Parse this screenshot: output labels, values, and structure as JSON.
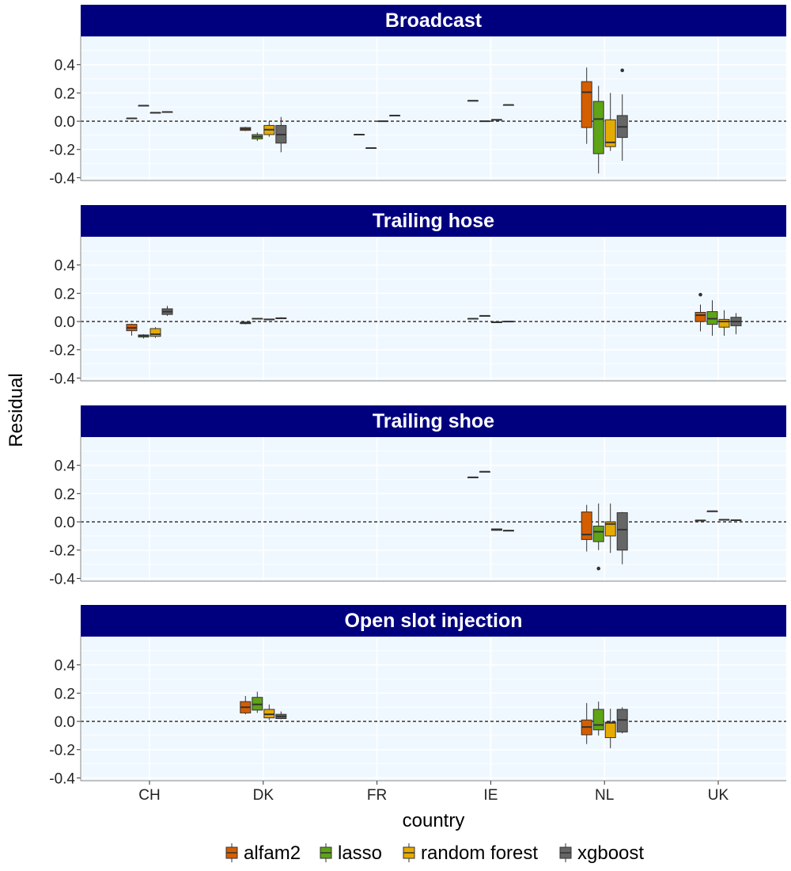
{
  "chart_data": {
    "type": "boxplot",
    "xlabel": "country",
    "ylabel": "Residual",
    "categories": [
      "CH",
      "DK",
      "FR",
      "IE",
      "NL",
      "UK"
    ],
    "ylim": [
      -0.42,
      0.6
    ],
    "yticks": [
      -0.4,
      -0.2,
      0.0,
      0.2,
      0.4
    ],
    "ytick_labels": [
      "-0.4",
      "-0.2",
      "0.0",
      "0.2",
      "0.4"
    ],
    "reference_line": 0,
    "grid": true,
    "legend_position": "bottom",
    "series": [
      {
        "name": "alfam2",
        "color": "#D55E00"
      },
      {
        "name": "lasso",
        "color": "#5FA317"
      },
      {
        "name": "random forest",
        "color": "#E6AB02"
      },
      {
        "name": "xgboost",
        "color": "#666666"
      }
    ],
    "panels": [
      {
        "title": "Broadcast",
        "boxes": [
          {
            "category": "CH",
            "series": "alfam2",
            "min": 0.02,
            "q1": 0.02,
            "median": 0.02,
            "q3": 0.02,
            "max": 0.02,
            "outliers": []
          },
          {
            "category": "CH",
            "series": "lasso",
            "min": 0.11,
            "q1": 0.11,
            "median": 0.11,
            "q3": 0.11,
            "max": 0.11,
            "outliers": []
          },
          {
            "category": "CH",
            "series": "random forest",
            "min": 0.06,
            "q1": 0.06,
            "median": 0.06,
            "q3": 0.06,
            "max": 0.06,
            "outliers": []
          },
          {
            "category": "CH",
            "series": "xgboost",
            "min": 0.065,
            "q1": 0.065,
            "median": 0.065,
            "q3": 0.065,
            "max": 0.065,
            "outliers": []
          },
          {
            "category": "DK",
            "series": "alfam2",
            "min": -0.07,
            "q1": -0.065,
            "median": -0.055,
            "q3": -0.045,
            "max": -0.04,
            "outliers": []
          },
          {
            "category": "DK",
            "series": "lasso",
            "min": -0.14,
            "q1": -0.125,
            "median": -0.11,
            "q3": -0.095,
            "max": -0.08,
            "outliers": []
          },
          {
            "category": "DK",
            "series": "random forest",
            "min": -0.11,
            "q1": -0.095,
            "median": -0.06,
            "q3": -0.03,
            "max": 0.0,
            "outliers": []
          },
          {
            "category": "DK",
            "series": "xgboost",
            "min": -0.22,
            "q1": -0.155,
            "median": -0.095,
            "q3": -0.03,
            "max": 0.03,
            "outliers": []
          },
          {
            "category": "FR",
            "series": "alfam2",
            "min": -0.095,
            "q1": -0.095,
            "median": -0.095,
            "q3": -0.095,
            "max": -0.095,
            "outliers": []
          },
          {
            "category": "FR",
            "series": "lasso",
            "min": -0.19,
            "q1": -0.19,
            "median": -0.19,
            "q3": -0.19,
            "max": -0.19,
            "outliers": []
          },
          {
            "category": "FR",
            "series": "random forest",
            "min": 0.0,
            "q1": 0.0,
            "median": 0.0,
            "q3": 0.0,
            "max": 0.0,
            "outliers": []
          },
          {
            "category": "FR",
            "series": "xgboost",
            "min": 0.04,
            "q1": 0.04,
            "median": 0.04,
            "q3": 0.04,
            "max": 0.04,
            "outliers": []
          },
          {
            "category": "IE",
            "series": "alfam2",
            "min": 0.145,
            "q1": 0.145,
            "median": 0.145,
            "q3": 0.145,
            "max": 0.145,
            "outliers": []
          },
          {
            "category": "IE",
            "series": "lasso",
            "min": 0.0,
            "q1": 0.0,
            "median": 0.0,
            "q3": 0.0,
            "max": 0.0,
            "outliers": []
          },
          {
            "category": "IE",
            "series": "random forest",
            "min": 0.01,
            "q1": 0.01,
            "median": 0.01,
            "q3": 0.01,
            "max": 0.01,
            "outliers": []
          },
          {
            "category": "IE",
            "series": "xgboost",
            "min": 0.115,
            "q1": 0.115,
            "median": 0.115,
            "q3": 0.115,
            "max": 0.115,
            "outliers": []
          },
          {
            "category": "NL",
            "series": "alfam2",
            "min": -0.16,
            "q1": -0.045,
            "median": 0.205,
            "q3": 0.28,
            "max": 0.38,
            "outliers": []
          },
          {
            "category": "NL",
            "series": "lasso",
            "min": -0.37,
            "q1": -0.23,
            "median": 0.015,
            "q3": 0.14,
            "max": 0.25,
            "outliers": []
          },
          {
            "category": "NL",
            "series": "random forest",
            "min": -0.21,
            "q1": -0.18,
            "median": -0.15,
            "q3": 0.01,
            "max": 0.2,
            "outliers": []
          },
          {
            "category": "NL",
            "series": "xgboost",
            "min": -0.28,
            "q1": -0.115,
            "median": -0.04,
            "q3": 0.04,
            "max": 0.19,
            "outliers": [
              0.36
            ]
          }
        ]
      },
      {
        "title": "Trailing hose",
        "boxes": [
          {
            "category": "CH",
            "series": "alfam2",
            "min": -0.1,
            "q1": -0.065,
            "median": -0.045,
            "q3": -0.02,
            "max": -0.015,
            "outliers": []
          },
          {
            "category": "CH",
            "series": "lasso",
            "min": -0.12,
            "q1": -0.11,
            "median": -0.1,
            "q3": -0.095,
            "max": -0.09,
            "outliers": []
          },
          {
            "category": "CH",
            "series": "random forest",
            "min": -0.115,
            "q1": -0.105,
            "median": -0.09,
            "q3": -0.05,
            "max": -0.04,
            "outliers": []
          },
          {
            "category": "CH",
            "series": "xgboost",
            "min": 0.04,
            "q1": 0.05,
            "median": 0.07,
            "q3": 0.09,
            "max": 0.11,
            "outliers": []
          },
          {
            "category": "DK",
            "series": "alfam2",
            "min": -0.02,
            "q1": -0.015,
            "median": -0.01,
            "q3": -0.005,
            "max": 0.0,
            "outliers": []
          },
          {
            "category": "DK",
            "series": "lasso",
            "min": 0.015,
            "q1": 0.018,
            "median": 0.02,
            "q3": 0.022,
            "max": 0.025,
            "outliers": []
          },
          {
            "category": "DK",
            "series": "random forest",
            "min": 0.01,
            "q1": 0.013,
            "median": 0.015,
            "q3": 0.017,
            "max": 0.02,
            "outliers": []
          },
          {
            "category": "DK",
            "series": "xgboost",
            "min": 0.018,
            "q1": 0.02,
            "median": 0.023,
            "q3": 0.026,
            "max": 0.03,
            "outliers": []
          },
          {
            "category": "IE",
            "series": "alfam2",
            "min": 0.02,
            "q1": 0.02,
            "median": 0.02,
            "q3": 0.02,
            "max": 0.02,
            "outliers": []
          },
          {
            "category": "IE",
            "series": "lasso",
            "min": 0.04,
            "q1": 0.04,
            "median": 0.04,
            "q3": 0.04,
            "max": 0.04,
            "outliers": []
          },
          {
            "category": "IE",
            "series": "random forest",
            "min": -0.005,
            "q1": -0.005,
            "median": -0.005,
            "q3": -0.005,
            "max": -0.005,
            "outliers": []
          },
          {
            "category": "IE",
            "series": "xgboost",
            "min": 0.0,
            "q1": 0.0,
            "median": 0.0,
            "q3": 0.0,
            "max": 0.0,
            "outliers": []
          },
          {
            "category": "UK",
            "series": "alfam2",
            "min": -0.07,
            "q1": 0.0,
            "median": 0.045,
            "q3": 0.065,
            "max": 0.12,
            "outliers": [
              0.19
            ]
          },
          {
            "category": "UK",
            "series": "lasso",
            "min": -0.1,
            "q1": -0.02,
            "median": 0.02,
            "q3": 0.07,
            "max": 0.15,
            "outliers": []
          },
          {
            "category": "UK",
            "series": "random forest",
            "min": -0.1,
            "q1": -0.04,
            "median": 0.0,
            "q3": 0.015,
            "max": 0.08,
            "outliers": []
          },
          {
            "category": "UK",
            "series": "xgboost",
            "min": -0.09,
            "q1": -0.03,
            "median": 0.0,
            "q3": 0.03,
            "max": 0.06,
            "outliers": []
          }
        ]
      },
      {
        "title": "Trailing shoe",
        "boxes": [
          {
            "category": "IE",
            "series": "alfam2",
            "min": 0.315,
            "q1": 0.315,
            "median": 0.315,
            "q3": 0.315,
            "max": 0.315,
            "outliers": []
          },
          {
            "category": "IE",
            "series": "lasso",
            "min": 0.355,
            "q1": 0.355,
            "median": 0.355,
            "q3": 0.355,
            "max": 0.355,
            "outliers": []
          },
          {
            "category": "IE",
            "series": "random forest",
            "min": -0.06,
            "q1": -0.06,
            "median": -0.055,
            "q3": -0.05,
            "max": -0.05,
            "outliers": []
          },
          {
            "category": "IE",
            "series": "xgboost",
            "min": -0.065,
            "q1": -0.065,
            "median": -0.062,
            "q3": -0.06,
            "max": -0.06,
            "outliers": []
          },
          {
            "category": "NL",
            "series": "alfam2",
            "min": -0.21,
            "q1": -0.125,
            "median": -0.09,
            "q3": 0.07,
            "max": 0.12,
            "outliers": []
          },
          {
            "category": "NL",
            "series": "lasso",
            "min": -0.2,
            "q1": -0.14,
            "median": -0.07,
            "q3": -0.03,
            "max": 0.13,
            "outliers": [
              -0.33
            ]
          },
          {
            "category": "NL",
            "series": "random forest",
            "min": -0.22,
            "q1": -0.1,
            "median": -0.015,
            "q3": 0.0,
            "max": 0.13,
            "outliers": []
          },
          {
            "category": "NL",
            "series": "xgboost",
            "min": -0.3,
            "q1": -0.2,
            "median": -0.055,
            "q3": 0.065,
            "max": 0.07,
            "outliers": []
          },
          {
            "category": "UK",
            "series": "alfam2",
            "min": 0.01,
            "q1": 0.01,
            "median": 0.01,
            "q3": 0.01,
            "max": 0.01,
            "outliers": []
          },
          {
            "category": "UK",
            "series": "lasso",
            "min": 0.075,
            "q1": 0.075,
            "median": 0.075,
            "q3": 0.075,
            "max": 0.075,
            "outliers": []
          },
          {
            "category": "UK",
            "series": "random forest",
            "min": 0.015,
            "q1": 0.015,
            "median": 0.015,
            "q3": 0.015,
            "max": 0.015,
            "outliers": []
          },
          {
            "category": "UK",
            "series": "xgboost",
            "min": 0.012,
            "q1": 0.012,
            "median": 0.012,
            "q3": 0.012,
            "max": 0.012,
            "outliers": []
          }
        ]
      },
      {
        "title": "Open slot injection",
        "boxes": [
          {
            "category": "DK",
            "series": "alfam2",
            "min": 0.05,
            "q1": 0.06,
            "median": 0.1,
            "q3": 0.14,
            "max": 0.18,
            "outliers": []
          },
          {
            "category": "DK",
            "series": "lasso",
            "min": 0.06,
            "q1": 0.08,
            "median": 0.12,
            "q3": 0.17,
            "max": 0.21,
            "outliers": []
          },
          {
            "category": "DK",
            "series": "random forest",
            "min": 0.01,
            "q1": 0.025,
            "median": 0.05,
            "q3": 0.085,
            "max": 0.12,
            "outliers": []
          },
          {
            "category": "DK",
            "series": "xgboost",
            "min": 0.015,
            "q1": 0.02,
            "median": 0.035,
            "q3": 0.05,
            "max": 0.07,
            "outliers": []
          },
          {
            "category": "NL",
            "series": "alfam2",
            "min": -0.16,
            "q1": -0.095,
            "median": -0.04,
            "q3": 0.01,
            "max": 0.13,
            "outliers": []
          },
          {
            "category": "NL",
            "series": "lasso",
            "min": -0.1,
            "q1": -0.06,
            "median": -0.025,
            "q3": 0.085,
            "max": 0.14,
            "outliers": []
          },
          {
            "category": "NL",
            "series": "random forest",
            "min": -0.19,
            "q1": -0.115,
            "median": -0.01,
            "q3": -0.005,
            "max": 0.09,
            "outliers": []
          },
          {
            "category": "NL",
            "series": "xgboost",
            "min": -0.085,
            "q1": -0.075,
            "median": 0.01,
            "q3": 0.085,
            "max": 0.1,
            "outliers": []
          }
        ]
      }
    ]
  }
}
